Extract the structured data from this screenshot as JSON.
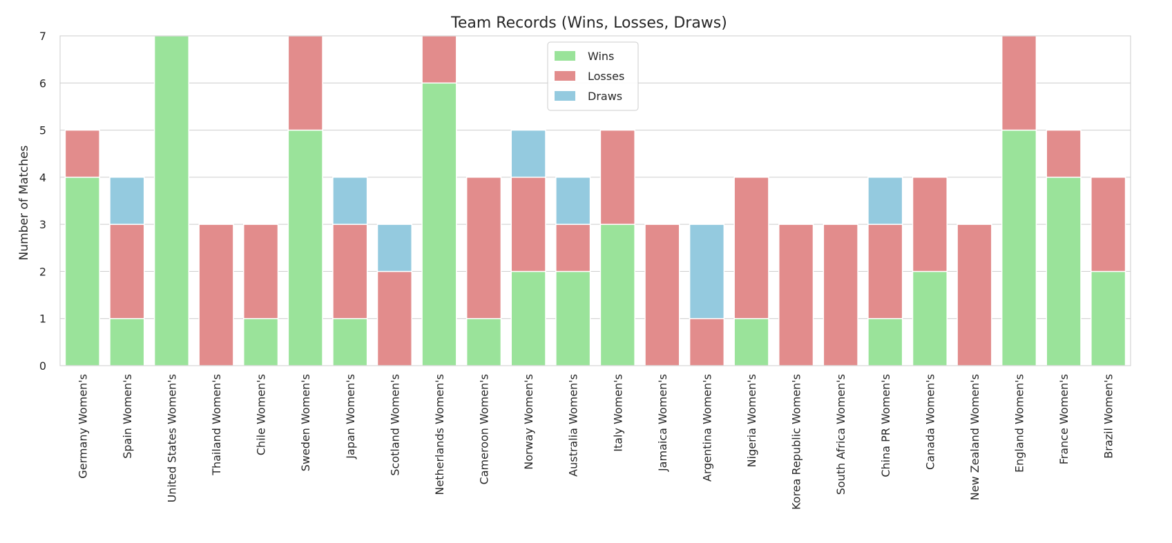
{
  "chart_data": {
    "type": "bar",
    "stacked": true,
    "title": "Team Records (Wins, Losses, Draws)",
    "xlabel": "",
    "ylabel": "Number of Matches",
    "ylim": [
      0,
      7
    ],
    "yticks": [
      0,
      1,
      2,
      3,
      4,
      5,
      6,
      7
    ],
    "grid": true,
    "legend_position": "top-center",
    "categories": [
      "Germany Women's",
      "Spain Women's",
      "United States Women's",
      "Thailand Women's",
      "Chile Women's",
      "Sweden Women's",
      "Japan Women's",
      "Scotland Women's",
      "Netherlands Women's",
      "Cameroon Women's",
      "Norway Women's",
      "Australia Women's",
      "Italy Women's",
      "Jamaica Women's",
      "Argentina Women's",
      "Nigeria Women's",
      "Korea Republic Women's",
      "South Africa Women's",
      "China PR Women's",
      "Canada Women's",
      "New Zealand Women's",
      "England Women's",
      "France Women's",
      "Brazil Women's"
    ],
    "series": [
      {
        "name": "Wins",
        "color": "#9ae39a",
        "values": [
          4,
          1,
          7,
          0,
          1,
          5,
          1,
          0,
          6,
          1,
          2,
          2,
          3,
          0,
          0,
          1,
          0,
          0,
          1,
          2,
          0,
          5,
          4,
          2
        ]
      },
      {
        "name": "Losses",
        "color": "#e28c8c",
        "values": [
          1,
          2,
          0,
          3,
          2,
          2,
          2,
          2,
          1,
          3,
          2,
          1,
          2,
          3,
          1,
          3,
          3,
          3,
          2,
          2,
          3,
          2,
          1,
          2
        ]
      },
      {
        "name": "Draws",
        "color": "#94cadf",
        "values": [
          0,
          1,
          0,
          0,
          0,
          0,
          1,
          1,
          0,
          0,
          1,
          1,
          0,
          0,
          2,
          0,
          0,
          0,
          1,
          0,
          0,
          0,
          0,
          0
        ]
      }
    ]
  }
}
